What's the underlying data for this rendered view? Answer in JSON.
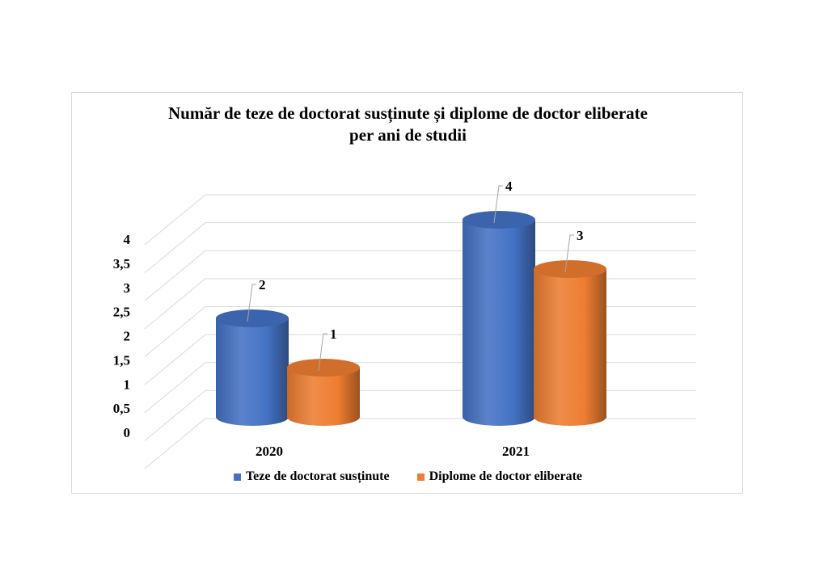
{
  "chart_data": {
    "type": "bar",
    "style": "3d-cylinder",
    "title_lines": [
      "Număr de teze de doctorat susținute și diplome de doctor eliberate",
      "per ani de studii"
    ],
    "categories": [
      "2020",
      "2021"
    ],
    "series": [
      {
        "name": "Teze de doctorat susținute",
        "values": [
          2,
          4
        ],
        "color": "#4472C4"
      },
      {
        "name": "Diplome de doctor eliberate",
        "values": [
          1,
          3
        ],
        "color": "#ED7D31"
      }
    ],
    "ylim": [
      0,
      4
    ],
    "y_ticks": [
      "0",
      "0,5",
      "1",
      "1,5",
      "2",
      "2,5",
      "3",
      "3,5",
      "4"
    ],
    "grid": true,
    "data_labels": true,
    "legend_position": "bottom"
  }
}
